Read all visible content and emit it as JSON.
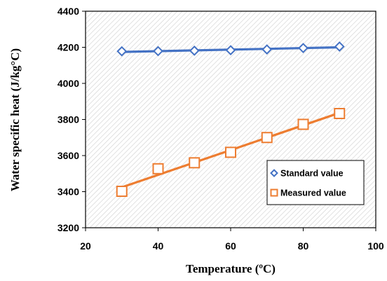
{
  "chart_data": {
    "type": "line",
    "xlabel": "Temperature (ºC)",
    "ylabel": "Water specific heat (J/kg°C)",
    "xlim": [
      20,
      100
    ],
    "ylim": [
      3200,
      4400
    ],
    "xticks": [
      "20",
      "40",
      "60",
      "80",
      "100"
    ],
    "yticks": [
      "3200",
      "3400",
      "3600",
      "3800",
      "4000",
      "4200",
      "4400"
    ],
    "grid": false,
    "background_pattern": "diagonal hatch",
    "legend_position": "bottom-right",
    "x": [
      30,
      40,
      50,
      60,
      70,
      80,
      90
    ],
    "series": [
      {
        "name": "Standard value",
        "color": "#4472c4",
        "marker": "diamond",
        "values": [
          4178,
          4179,
          4181,
          4184,
          4188,
          4196,
          4204
        ]
      },
      {
        "name": "Measured value",
        "color": "#ed7d31",
        "marker": "square",
        "values": [
          3402,
          3527,
          3560,
          3618,
          3700,
          3773,
          3833
        ]
      }
    ]
  }
}
